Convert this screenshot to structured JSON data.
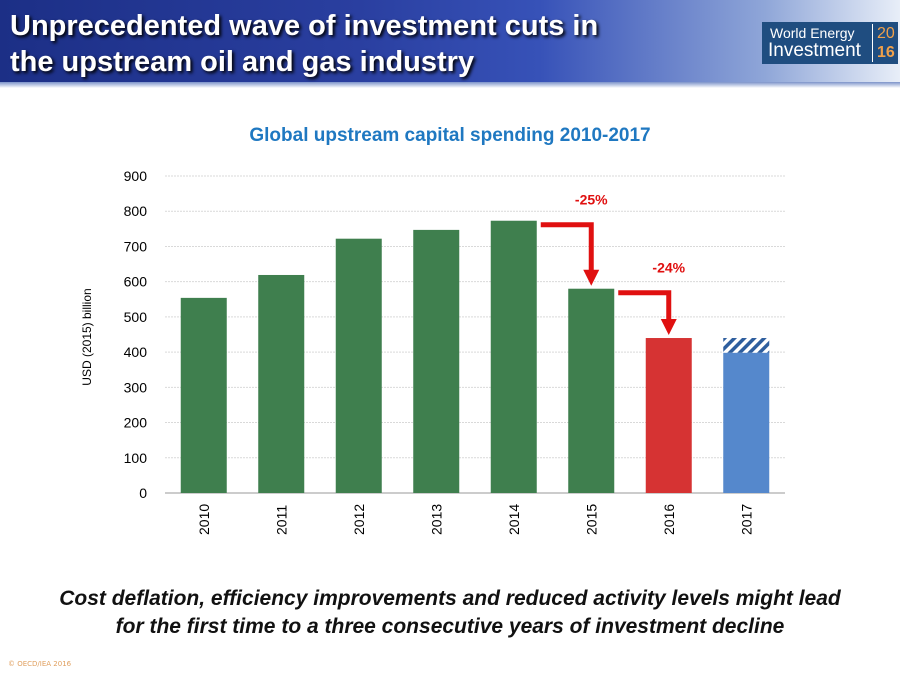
{
  "slide": {
    "title_line1": "Unprecedented wave of investment cuts in",
    "title_line2": "the upstream oil and gas industry",
    "logo_line1": "World Energy",
    "logo_line2": "Investment",
    "logo_year1": "20",
    "logo_year2": "16",
    "caption_line1": "Cost deflation, efficiency improvements and reduced activity levels might lead",
    "caption_line2": "for the first time to a three consecutive years of investment decline",
    "copyright": "© OECD/IEA 2016"
  },
  "chart_data": {
    "type": "bar",
    "title": "Global upstream capital spending 2010-2017",
    "xlabel": "",
    "ylabel": "USD (2015) billion",
    "ylim": [
      0,
      900
    ],
    "yticks": [
      0,
      100,
      200,
      300,
      400,
      500,
      600,
      700,
      800,
      900
    ],
    "categories": [
      "2010",
      "2011",
      "2012",
      "2013",
      "2014",
      "2015",
      "2016",
      "2017"
    ],
    "values": [
      554,
      619,
      722,
      747,
      773,
      580,
      440,
      398
    ],
    "colors": [
      "#3f7f4e",
      "#3f7f4e",
      "#3f7f4e",
      "#3f7f4e",
      "#3f7f4e",
      "#3f7f4e",
      "#d63333",
      "#5588cc"
    ],
    "range_2017": [
      398,
      440
    ],
    "annotations": [
      {
        "text": "-25%",
        "from": "2014",
        "to": "2015"
      },
      {
        "text": "-24%",
        "from": "2015",
        "to": "2016"
      }
    ],
    "annotation_color": "#e01010",
    "title_color": "#1f78c1",
    "grid": true
  }
}
